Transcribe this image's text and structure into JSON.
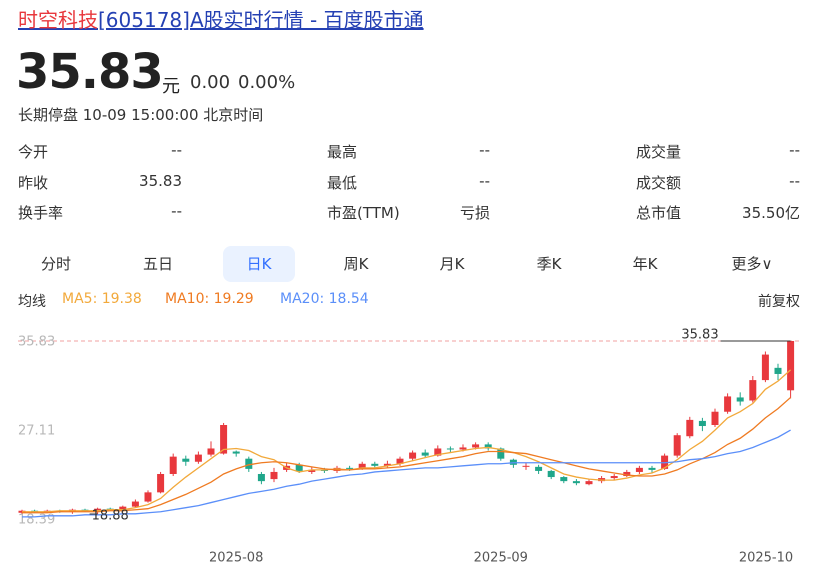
{
  "header": {
    "title_highlight": "时空科技",
    "title_rest": "[605178]A股实时行情 - 百度股市通",
    "price": 35.83,
    "unit": "元",
    "change": "0.00",
    "change_pct": "0.00%",
    "status": "长期停盘 10-09 15:00:00 北京时间"
  },
  "stats": [
    [
      [
        "今开",
        "--"
      ],
      [
        "最高",
        "--"
      ],
      [
        "成交量",
        "--"
      ]
    ],
    [
      [
        "昨收",
        35.83
      ],
      [
        "最低",
        "--"
      ],
      [
        "成交额",
        "--"
      ]
    ],
    [
      [
        "换手率",
        "--"
      ],
      [
        "市盈(TTM)",
        "亏损"
      ],
      [
        "总市值",
        "35.50亿"
      ]
    ]
  ],
  "tabs": [
    "分时",
    "五日",
    "日K",
    "周K",
    "月K",
    "季K",
    "年K",
    "更多∨"
  ],
  "selected_tab": 2,
  "ma_title": "均线",
  "adjust": "前复权",
  "chart_data": {
    "type": "candlestick",
    "categories": [
      null,
      null,
      null,
      null,
      null,
      null,
      null,
      null,
      null,
      null,
      null,
      null,
      null,
      null,
      null,
      null,
      null,
      "2025-08",
      null,
      null,
      null,
      null,
      null,
      null,
      null,
      null,
      null,
      null,
      null,
      null,
      null,
      null,
      null,
      null,
      null,
      null,
      null,
      null,
      "2025-09",
      null,
      null,
      null,
      null,
      null,
      null,
      null,
      null,
      null,
      null,
      null,
      null,
      null,
      null,
      null,
      null,
      null,
      null,
      null,
      null,
      null,
      null,
      "2025-10"
    ],
    "ohlc": [
      [
        19.0,
        19.3,
        18.9,
        19.2
      ],
      [
        19.2,
        19.3,
        19.0,
        19.1
      ],
      [
        19.1,
        19.3,
        19.0,
        19.2
      ],
      [
        19.2,
        19.3,
        19.0,
        19.1
      ],
      [
        19.1,
        19.4,
        18.9,
        19.3
      ],
      [
        19.3,
        19.4,
        19.1,
        19.2
      ],
      [
        19.2,
        19.5,
        18.88,
        19.4
      ],
      [
        19.4,
        19.5,
        19.2,
        19.3
      ],
      [
        19.3,
        19.7,
        19.2,
        19.6
      ],
      [
        19.6,
        20.3,
        19.5,
        20.1
      ],
      [
        20.1,
        21.2,
        20.0,
        21.0
      ],
      [
        21.0,
        23.0,
        20.9,
        22.8
      ],
      [
        22.8,
        24.8,
        22.6,
        24.5
      ],
      [
        24.3,
        24.6,
        23.6,
        24.0
      ],
      [
        24.0,
        25.0,
        23.8,
        24.7
      ],
      [
        24.7,
        26.0,
        24.5,
        25.3
      ],
      [
        24.8,
        27.8,
        24.7,
        27.6
      ],
      [
        25.0,
        25.1,
        24.5,
        24.8
      ],
      [
        24.3,
        24.5,
        23.0,
        23.3
      ],
      [
        22.8,
        23.0,
        21.8,
        22.1
      ],
      [
        22.3,
        23.4,
        22.0,
        23.0
      ],
      [
        23.2,
        23.9,
        23.0,
        23.6
      ],
      [
        23.7,
        23.9,
        22.9,
        23.1
      ],
      [
        23.0,
        23.5,
        22.8,
        23.2
      ],
      [
        23.2,
        23.4,
        22.9,
        23.1
      ],
      [
        23.1,
        23.6,
        22.9,
        23.4
      ],
      [
        23.4,
        23.6,
        23.1,
        23.3
      ],
      [
        23.3,
        24.0,
        23.2,
        23.8
      ],
      [
        23.8,
        24.0,
        23.4,
        23.6
      ],
      [
        23.6,
        24.1,
        23.4,
        23.8
      ],
      [
        23.8,
        24.5,
        23.6,
        24.3
      ],
      [
        24.3,
        25.1,
        24.1,
        24.9
      ],
      [
        24.9,
        25.2,
        24.4,
        24.6
      ],
      [
        24.6,
        25.6,
        24.5,
        25.3
      ],
      [
        25.3,
        25.5,
        24.9,
        25.2
      ],
      [
        25.2,
        25.7,
        25.0,
        25.4
      ],
      [
        25.4,
        25.9,
        25.2,
        25.7
      ],
      [
        25.7,
        25.9,
        25.1,
        25.3
      ],
      [
        25.3,
        25.4,
        24.1,
        24.3
      ],
      [
        24.2,
        24.3,
        23.4,
        23.7
      ],
      [
        23.6,
        23.9,
        23.2,
        23.6
      ],
      [
        23.5,
        23.7,
        22.8,
        23.1
      ],
      [
        23.1,
        23.2,
        22.3,
        22.5
      ],
      [
        22.5,
        22.6,
        21.9,
        22.1
      ],
      [
        22.1,
        22.3,
        21.7,
        21.9
      ],
      [
        21.8,
        22.3,
        21.7,
        22.1
      ],
      [
        22.1,
        22.6,
        21.9,
        22.4
      ],
      [
        22.4,
        22.8,
        22.2,
        22.6
      ],
      [
        22.6,
        23.2,
        22.5,
        23.0
      ],
      [
        23.0,
        23.6,
        22.8,
        23.4
      ],
      [
        23.4,
        23.6,
        22.9,
        23.2
      ],
      [
        23.3,
        24.8,
        23.2,
        24.6
      ],
      [
        24.6,
        26.8,
        24.4,
        26.6
      ],
      [
        26.5,
        28.4,
        26.3,
        28.1
      ],
      [
        28.0,
        28.3,
        27.0,
        27.5
      ],
      [
        27.6,
        29.2,
        27.4,
        28.9
      ],
      [
        28.9,
        30.7,
        28.7,
        30.4
      ],
      [
        30.3,
        30.8,
        29.5,
        29.9
      ],
      [
        30.0,
        32.4,
        29.8,
        32.0
      ],
      [
        32.0,
        34.8,
        31.8,
        34.5
      ],
      [
        33.2,
        33.6,
        32.0,
        32.6
      ],
      [
        31.0,
        35.83,
        30.2,
        35.83
      ]
    ],
    "up_color": "#e8383d",
    "down_color": "#1fa68a",
    "series": [
      {
        "legend": "MA5: 19.38",
        "color": "#f2a93b",
        "values": [
          19.1,
          19.1,
          19.1,
          19.2,
          19.2,
          19.2,
          19.2,
          19.3,
          19.3,
          19.5,
          19.8,
          20.4,
          21.5,
          22.5,
          23.4,
          24.3,
          25.2,
          25.3,
          25.1,
          24.5,
          24.2,
          23.4,
          23.0,
          23.2,
          23.2,
          23.3,
          23.2,
          23.4,
          23.4,
          23.6,
          23.8,
          24.1,
          24.4,
          24.7,
          24.9,
          25.1,
          25.3,
          25.4,
          25.2,
          24.9,
          24.5,
          24.0,
          23.4,
          22.8,
          22.5,
          22.3,
          22.2,
          22.2,
          22.4,
          22.7,
          22.9,
          23.4,
          24.2,
          25.2,
          26.0,
          27.1,
          28.3,
          28.9,
          29.7,
          31.1,
          31.9,
          33.0
        ]
      },
      {
        "legend": "MA10: 19.29",
        "color": "#ef7b22",
        "values": [
          19.0,
          19.0,
          19.0,
          19.1,
          19.1,
          19.1,
          19.1,
          19.2,
          19.2,
          19.3,
          19.4,
          19.8,
          20.3,
          20.8,
          21.4,
          22.0,
          22.8,
          23.3,
          23.7,
          23.9,
          24.0,
          23.9,
          23.7,
          23.5,
          23.3,
          23.2,
          23.2,
          23.3,
          23.3,
          23.4,
          23.5,
          23.7,
          23.9,
          24.1,
          24.3,
          24.5,
          24.8,
          25.0,
          25.0,
          24.9,
          24.8,
          24.5,
          24.2,
          23.9,
          23.6,
          23.3,
          23.1,
          22.9,
          22.7,
          22.6,
          22.6,
          22.8,
          23.2,
          23.8,
          24.3,
          24.9,
          25.7,
          26.3,
          27.2,
          28.3,
          29.2,
          30.3
        ]
      },
      {
        "legend": "MA20: 18.54",
        "color": "#5b8ff9",
        "values": [
          18.6,
          18.6,
          18.7,
          18.7,
          18.7,
          18.8,
          18.8,
          18.8,
          18.9,
          18.9,
          19.0,
          19.1,
          19.3,
          19.5,
          19.7,
          20.0,
          20.3,
          20.6,
          20.9,
          21.1,
          21.3,
          21.6,
          21.8,
          22.1,
          22.3,
          22.5,
          22.7,
          22.8,
          23.0,
          23.1,
          23.2,
          23.3,
          23.4,
          23.4,
          23.5,
          23.6,
          23.7,
          23.8,
          23.8,
          23.9,
          23.9,
          23.9,
          23.9,
          23.9,
          23.9,
          23.9,
          23.9,
          23.9,
          23.9,
          23.9,
          23.9,
          23.9,
          24.0,
          24.2,
          24.3,
          24.5,
          24.8,
          25.0,
          25.4,
          25.9,
          26.4,
          27.1
        ]
      }
    ],
    "ylim": [
      18.39,
      35.83
    ],
    "yticks": [
      35.83,
      27.11,
      18.39
    ]
  }
}
